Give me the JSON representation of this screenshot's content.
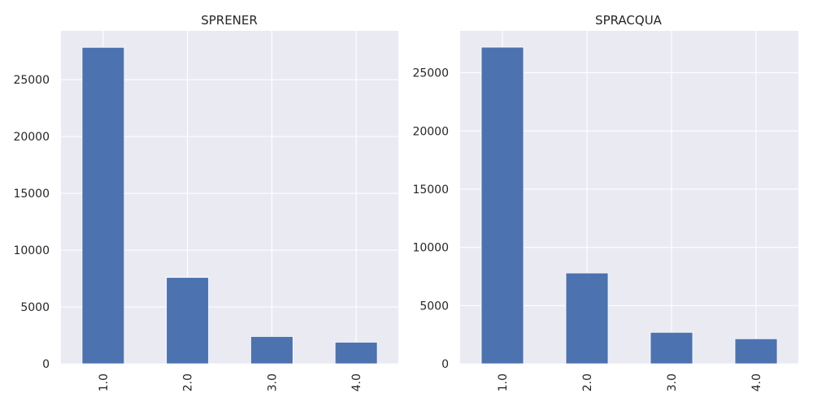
{
  "chart_data": [
    {
      "type": "bar",
      "title": "SPRENER",
      "categories": [
        "1.0",
        "2.0",
        "3.0",
        "4.0"
      ],
      "values": [
        27850,
        7600,
        2400,
        1900
      ],
      "ylim": [
        0,
        29300
      ],
      "yticks": [
        0,
        5000,
        10000,
        15000,
        20000,
        25000
      ],
      "xlabel": "",
      "ylabel": "",
      "grid": true,
      "color": "#4c72b0"
    },
    {
      "type": "bar",
      "title": "SPRACQUA",
      "categories": [
        "1.0",
        "2.0",
        "3.0",
        "4.0"
      ],
      "values": [
        27200,
        7800,
        2700,
        2150
      ],
      "ylim": [
        0,
        28600
      ],
      "yticks": [
        0,
        5000,
        10000,
        15000,
        20000,
        25000
      ],
      "xlabel": "",
      "ylabel": "",
      "grid": true,
      "color": "#4c72b0"
    }
  ]
}
